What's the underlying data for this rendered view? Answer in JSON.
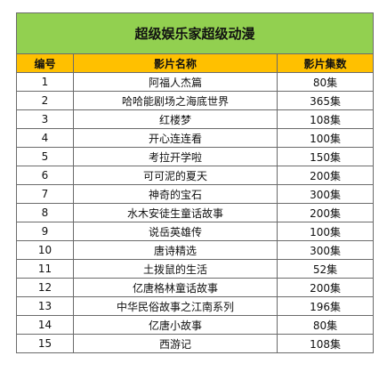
{
  "title": "超级娱乐家超级动漫",
  "headers": {
    "index": "编号",
    "name": "影片名称",
    "episodes": "影片集数"
  },
  "rows": [
    {
      "index": "1",
      "name": "阿福人杰篇",
      "episodes": "80集"
    },
    {
      "index": "2",
      "name": "哈哈能剧场之海底世界",
      "episodes": "365集"
    },
    {
      "index": "3",
      "name": "红楼梦",
      "episodes": "108集"
    },
    {
      "index": "4",
      "name": "开心连连看",
      "episodes": "100集"
    },
    {
      "index": "5",
      "name": "考拉开学啦",
      "episodes": "150集"
    },
    {
      "index": "6",
      "name": "可可泥的夏天",
      "episodes": "200集"
    },
    {
      "index": "7",
      "name": "神奇的宝石",
      "episodes": "300集"
    },
    {
      "index": "8",
      "name": "水木安徒生童话故事",
      "episodes": "200集"
    },
    {
      "index": "9",
      "name": "说岳英雄传",
      "episodes": "100集"
    },
    {
      "index": "10",
      "name": "唐诗精选",
      "episodes": "300集"
    },
    {
      "index": "11",
      "name": "土拨鼠的生活",
      "episodes": "52集"
    },
    {
      "index": "12",
      "name": "亿唐格林童话故事",
      "episodes": "200集"
    },
    {
      "index": "13",
      "name": "中华民俗故事之江南系列",
      "episodes": "196集"
    },
    {
      "index": "14",
      "name": "亿唐小故事",
      "episodes": "80集"
    },
    {
      "index": "15",
      "name": "西游记",
      "episodes": "108集"
    }
  ],
  "colors": {
    "title_bg": "#92d050",
    "header_bg": "#ffc000",
    "border": "#6b6b6b"
  }
}
